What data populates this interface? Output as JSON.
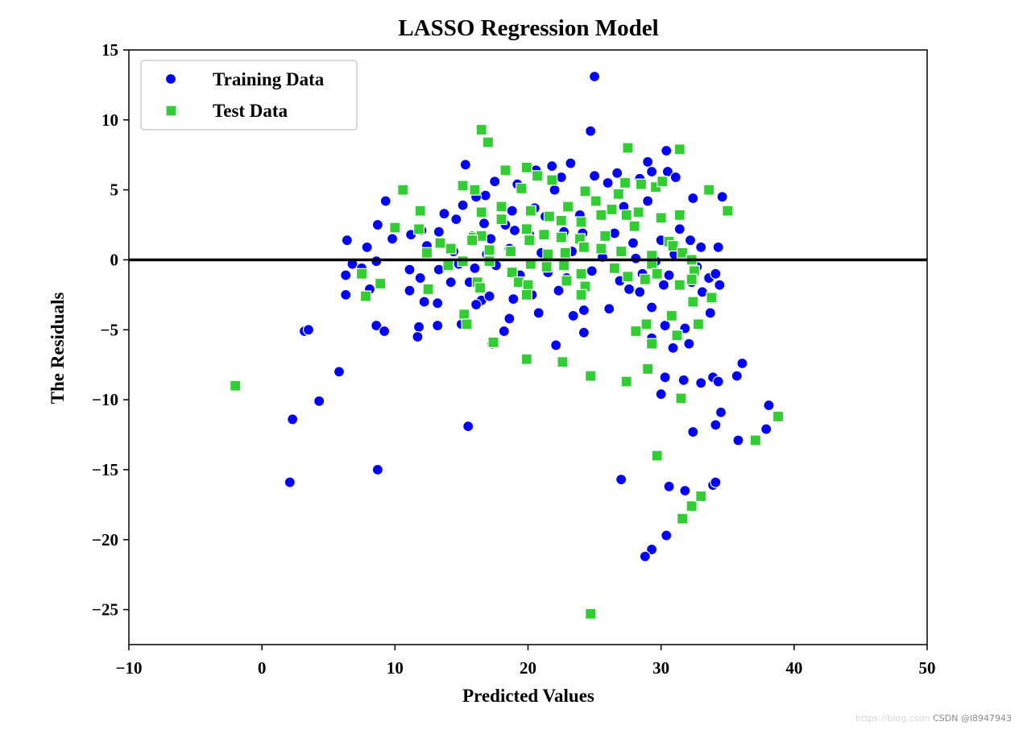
{
  "chart_data": {
    "type": "scatter",
    "title": "LASSO Regression Model",
    "xlabel": "Predicted Values",
    "ylabel": "The Residuals",
    "xlim": [
      -10,
      50
    ],
    "ylim": [
      -27.5,
      15
    ],
    "xticks": [
      -10,
      0,
      10,
      20,
      30,
      40,
      50
    ],
    "xtick_labels": [
      "−10",
      "0",
      "10",
      "20",
      "30",
      "40",
      "50"
    ],
    "yticks": [
      15,
      10,
      5,
      0,
      -5,
      -10,
      -15,
      -20,
      -25
    ],
    "ytick_labels": [
      "15",
      "10",
      "5",
      "0",
      "−5",
      "−10",
      "−15",
      "−20",
      "−25"
    ],
    "grid": false,
    "legend_position": "top-left",
    "hline_y": 0,
    "series": [
      {
        "name": "Training Data",
        "marker": "circle",
        "color": "#0000ff",
        "points": [
          [
            25.0,
            13.1
          ],
          [
            24.7,
            9.2
          ],
          [
            30.4,
            7.8
          ],
          [
            29.0,
            7.0
          ],
          [
            23.2,
            6.9
          ],
          [
            21.8,
            6.7
          ],
          [
            15.3,
            6.8
          ],
          [
            26.7,
            6.2
          ],
          [
            30.5,
            6.3
          ],
          [
            29.3,
            6.3
          ],
          [
            25.0,
            6.0
          ],
          [
            20.6,
            6.4
          ],
          [
            17.5,
            5.6
          ],
          [
            22.5,
            5.9
          ],
          [
            31.1,
            5.9
          ],
          [
            28.4,
            5.8
          ],
          [
            16.8,
            4.6
          ],
          [
            19.2,
            5.4
          ],
          [
            26.0,
            5.5
          ],
          [
            22.0,
            5.0
          ],
          [
            32.4,
            4.4
          ],
          [
            34.6,
            4.5
          ],
          [
            9.3,
            4.2
          ],
          [
            16.1,
            4.5
          ],
          [
            15.1,
            3.9
          ],
          [
            20.5,
            3.7
          ],
          [
            18.8,
            3.5
          ],
          [
            27.2,
            3.8
          ],
          [
            29.0,
            4.2
          ],
          [
            21.3,
            3.1
          ],
          [
            23.9,
            3.2
          ],
          [
            13.7,
            3.3
          ],
          [
            14.6,
            2.9
          ],
          [
            16.7,
            2.6
          ],
          [
            18.3,
            2.5
          ],
          [
            8.7,
            2.5
          ],
          [
            11.2,
            1.8
          ],
          [
            12.0,
            2.1
          ],
          [
            13.3,
            2.0
          ],
          [
            15.8,
            1.7
          ],
          [
            17.2,
            1.5
          ],
          [
            19.0,
            2.1
          ],
          [
            20.1,
            1.8
          ],
          [
            22.7,
            2.0
          ],
          [
            24.1,
            1.9
          ],
          [
            26.5,
            1.9
          ],
          [
            27.9,
            1.2
          ],
          [
            30.0,
            1.4
          ],
          [
            31.4,
            2.2
          ],
          [
            32.2,
            1.4
          ],
          [
            33.0,
            0.9
          ],
          [
            34.3,
            0.9
          ],
          [
            6.4,
            1.4
          ],
          [
            7.9,
            0.9
          ],
          [
            9.8,
            1.5
          ],
          [
            12.4,
            1.0
          ],
          [
            14.4,
            0.6
          ],
          [
            16.9,
            0.4
          ],
          [
            18.6,
            0.8
          ],
          [
            21.0,
            0.5
          ],
          [
            23.3,
            0.6
          ],
          [
            25.6,
            0.2
          ],
          [
            28.1,
            0.1
          ],
          [
            29.6,
            -0.1
          ],
          [
            31.0,
            0.4
          ],
          [
            32.7,
            -0.5
          ],
          [
            6.8,
            -0.3
          ],
          [
            8.6,
            -0.1
          ],
          [
            11.1,
            -0.7
          ],
          [
            11.9,
            -1.3
          ],
          [
            13.3,
            -0.7
          ],
          [
            14.8,
            -0.3
          ],
          [
            16.0,
            -0.6
          ],
          [
            17.6,
            -0.4
          ],
          [
            19.4,
            -1.1
          ],
          [
            21.5,
            -0.9
          ],
          [
            22.9,
            -1.3
          ],
          [
            24.8,
            -0.8
          ],
          [
            26.9,
            -1.5
          ],
          [
            28.6,
            -1.0
          ],
          [
            30.2,
            -1.8
          ],
          [
            30.6,
            -1.1
          ],
          [
            32.3,
            -1.6
          ],
          [
            33.6,
            -1.3
          ],
          [
            34.1,
            -1.0
          ],
          [
            34.4,
            -1.8
          ],
          [
            6.3,
            -1.1
          ],
          [
            7.5,
            -0.6
          ],
          [
            11.1,
            -2.2
          ],
          [
            12.2,
            -3.0
          ],
          [
            13.2,
            -3.1
          ],
          [
            14.2,
            -1.6
          ],
          [
            15.6,
            -1.6
          ],
          [
            16.5,
            -2.9
          ],
          [
            17.1,
            -2.6
          ],
          [
            18.9,
            -2.8
          ],
          [
            20.3,
            -2.5
          ],
          [
            20.8,
            -3.8
          ],
          [
            22.3,
            -2.2
          ],
          [
            23.4,
            -4.0
          ],
          [
            24.2,
            -3.6
          ],
          [
            26.1,
            -3.5
          ],
          [
            27.6,
            -2.1
          ],
          [
            28.4,
            -2.3
          ],
          [
            29.3,
            -3.4
          ],
          [
            30.3,
            -4.7
          ],
          [
            31.8,
            -4.9
          ],
          [
            32.1,
            -6.0
          ],
          [
            33.1,
            -2.3
          ],
          [
            33.7,
            -3.8
          ],
          [
            6.3,
            -2.5
          ],
          [
            8.1,
            -2.1
          ],
          [
            8.6,
            -4.7
          ],
          [
            9.2,
            -5.1
          ],
          [
            11.8,
            -4.8
          ],
          [
            11.7,
            -5.5
          ],
          [
            13.2,
            -4.7
          ],
          [
            15.0,
            -4.6
          ],
          [
            16.1,
            -3.2
          ],
          [
            18.6,
            -4.2
          ],
          [
            18.2,
            -5.1
          ],
          [
            17.3,
            -6.0
          ],
          [
            22.1,
            -6.1
          ],
          [
            24.2,
            -5.2
          ],
          [
            29.3,
            -5.6
          ],
          [
            30.9,
            -6.3
          ],
          [
            31.7,
            -8.6
          ],
          [
            33.0,
            -8.8
          ],
          [
            33.9,
            -8.4
          ],
          [
            34.3,
            -8.7
          ],
          [
            35.7,
            -8.3
          ],
          [
            36.1,
            -7.4
          ],
          [
            3.2,
            -5.1
          ],
          [
            3.5,
            -5.0
          ],
          [
            5.8,
            -8.0
          ],
          [
            4.3,
            -10.1
          ],
          [
            2.3,
            -11.4
          ],
          [
            15.5,
            -11.9
          ],
          [
            30.3,
            -8.4
          ],
          [
            30.0,
            -9.6
          ],
          [
            34.1,
            -11.8
          ],
          [
            34.5,
            -10.9
          ],
          [
            32.4,
            -12.3
          ],
          [
            35.8,
            -12.9
          ],
          [
            37.9,
            -12.1
          ],
          [
            38.1,
            -10.4
          ],
          [
            2.1,
            -15.9
          ],
          [
            8.7,
            -15.0
          ],
          [
            27.0,
            -15.7
          ],
          [
            30.6,
            -16.2
          ],
          [
            31.8,
            -16.5
          ],
          [
            33.9,
            -16.1
          ],
          [
            34.1,
            -15.9
          ],
          [
            30.4,
            -19.7
          ],
          [
            29.3,
            -20.7
          ],
          [
            28.8,
            -21.2
          ]
        ]
      },
      {
        "name": "Test Data",
        "marker": "square",
        "color": "#32cd32",
        "points": [
          [
            16.5,
            9.3
          ],
          [
            17.0,
            8.4
          ],
          [
            27.5,
            8.0
          ],
          [
            31.4,
            7.9
          ],
          [
            10.6,
            5.0
          ],
          [
            15.1,
            5.3
          ],
          [
            16.0,
            5.0
          ],
          [
            19.5,
            5.1
          ],
          [
            18.3,
            6.4
          ],
          [
            19.9,
            6.6
          ],
          [
            20.7,
            6.0
          ],
          [
            21.8,
            5.7
          ],
          [
            23.0,
            3.8
          ],
          [
            24.3,
            4.9
          ],
          [
            25.1,
            4.2
          ],
          [
            26.8,
            4.7
          ],
          [
            27.3,
            5.5
          ],
          [
            28.5,
            5.4
          ],
          [
            29.6,
            5.2
          ],
          [
            30.1,
            5.6
          ],
          [
            33.6,
            5.0
          ],
          [
            35.0,
            3.5
          ],
          [
            11.9,
            3.5
          ],
          [
            16.5,
            3.4
          ],
          [
            18.0,
            3.8
          ],
          [
            20.2,
            3.5
          ],
          [
            21.6,
            3.1
          ],
          [
            22.5,
            2.8
          ],
          [
            24.0,
            2.7
          ],
          [
            25.5,
            3.2
          ],
          [
            26.3,
            3.6
          ],
          [
            27.4,
            3.2
          ],
          [
            28.3,
            3.4
          ],
          [
            30.0,
            3.0
          ],
          [
            31.4,
            3.2
          ],
          [
            10.0,
            2.3
          ],
          [
            11.8,
            2.2
          ],
          [
            15.9,
            1.6
          ],
          [
            16.5,
            1.7
          ],
          [
            18.0,
            2.9
          ],
          [
            19.9,
            2.2
          ],
          [
            21.2,
            1.8
          ],
          [
            22.5,
            1.6
          ],
          [
            23.9,
            1.5
          ],
          [
            25.8,
            1.7
          ],
          [
            28.0,
            2.4
          ],
          [
            30.6,
            1.3
          ],
          [
            12.4,
            0.5
          ],
          [
            13.4,
            1.2
          ],
          [
            14.2,
            0.8
          ],
          [
            15.8,
            1.4
          ],
          [
            17.1,
            0.7
          ],
          [
            18.7,
            0.6
          ],
          [
            20.1,
            1.4
          ],
          [
            21.5,
            0.4
          ],
          [
            22.8,
            0.5
          ],
          [
            24.2,
            0.9
          ],
          [
            25.5,
            0.8
          ],
          [
            27.0,
            0.6
          ],
          [
            29.3,
            0.3
          ],
          [
            30.9,
            1.0
          ],
          [
            31.6,
            0.5
          ],
          [
            32.3,
            0.0
          ],
          [
            14.0,
            -0.4
          ],
          [
            15.1,
            -0.1
          ],
          [
            17.1,
            -0.1
          ],
          [
            18.8,
            -0.9
          ],
          [
            20.2,
            -0.3
          ],
          [
            21.4,
            -0.5
          ],
          [
            22.7,
            -0.4
          ],
          [
            24.0,
            -1.0
          ],
          [
            26.5,
            -0.6
          ],
          [
            27.5,
            -1.2
          ],
          [
            28.8,
            -1.4
          ],
          [
            29.3,
            -0.3
          ],
          [
            32.5,
            -0.8
          ],
          [
            7.5,
            -1.0
          ],
          [
            8.9,
            -1.7
          ],
          [
            12.5,
            -2.1
          ],
          [
            16.2,
            -1.6
          ],
          [
            16.4,
            -2.0
          ],
          [
            19.3,
            -1.6
          ],
          [
            20.0,
            -1.8
          ],
          [
            22.9,
            -1.5
          ],
          [
            24.3,
            -1.9
          ],
          [
            29.7,
            -1.0
          ],
          [
            31.4,
            -1.8
          ],
          [
            32.3,
            -1.4
          ],
          [
            7.8,
            -2.6
          ],
          [
            19.9,
            -2.5
          ],
          [
            24.0,
            -2.5
          ],
          [
            32.4,
            -3.0
          ],
          [
            33.8,
            -2.7
          ],
          [
            15.2,
            -3.9
          ],
          [
            15.4,
            -4.6
          ],
          [
            17.4,
            -5.9
          ],
          [
            28.1,
            -5.1
          ],
          [
            28.9,
            -4.6
          ],
          [
            29.3,
            -6.0
          ],
          [
            30.8,
            -4.0
          ],
          [
            31.2,
            -5.4
          ],
          [
            32.8,
            -4.6
          ],
          [
            -2.0,
            -9.0
          ],
          [
            19.9,
            -7.1
          ],
          [
            22.6,
            -7.3
          ],
          [
            24.7,
            -8.3
          ],
          [
            27.4,
            -8.7
          ],
          [
            29.0,
            -7.8
          ],
          [
            31.5,
            -9.9
          ],
          [
            37.1,
            -12.9
          ],
          [
            38.8,
            -11.2
          ],
          [
            29.7,
            -14.0
          ],
          [
            31.6,
            -18.5
          ],
          [
            32.3,
            -17.6
          ],
          [
            33.0,
            -16.9
          ],
          [
            24.7,
            -25.3
          ]
        ]
      }
    ]
  },
  "watermark": {
    "text": "CSDN @l8947943",
    "faint_url": "https://blog.csdn"
  }
}
